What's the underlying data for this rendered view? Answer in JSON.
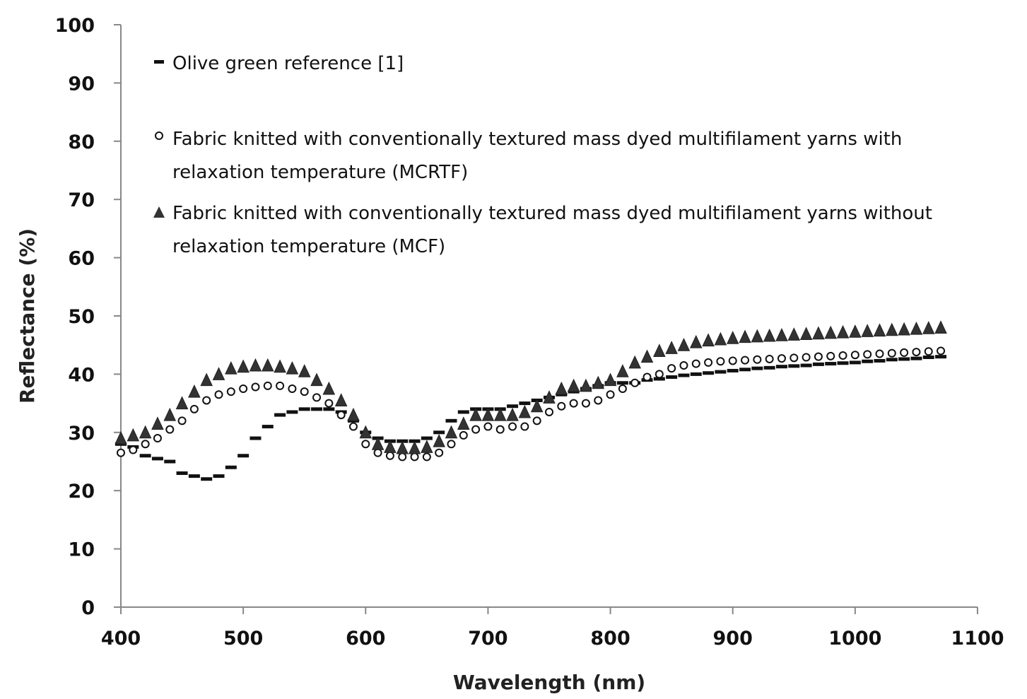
{
  "chart_data": {
    "type": "scatter",
    "title": "",
    "xlabel": "Wavelength (nm)",
    "ylabel": "Reflectance (%)",
    "xlim": [
      400,
      1100
    ],
    "ylim": [
      0,
      100
    ],
    "xticks": [
      "400",
      "500",
      "600",
      "700",
      "800",
      "900",
      "1000",
      "1100"
    ],
    "yticks": [
      "0",
      "10",
      "20",
      "30",
      "40",
      "50",
      "60",
      "70",
      "80",
      "90",
      "100"
    ],
    "grid": false,
    "legend_placement": "top-left",
    "x": [
      400,
      410,
      420,
      430,
      440,
      450,
      460,
      470,
      480,
      490,
      500,
      510,
      520,
      530,
      540,
      550,
      560,
      570,
      580,
      590,
      600,
      610,
      620,
      630,
      640,
      650,
      660,
      670,
      680,
      690,
      700,
      710,
      720,
      730,
      740,
      750,
      760,
      770,
      780,
      790,
      800,
      810,
      820,
      830,
      840,
      850,
      860,
      870,
      880,
      890,
      900,
      910,
      920,
      930,
      940,
      950,
      960,
      970,
      980,
      990,
      1000,
      1010,
      1020,
      1030,
      1040,
      1050,
      1060,
      1070
    ],
    "series": [
      {
        "name": "Olive green reference [1]",
        "marker": "dash",
        "legend_lines": [
          "Olive green reference [1]"
        ],
        "values": [
          28,
          27.5,
          26,
          25.5,
          25,
          23,
          22.5,
          22,
          22.5,
          24,
          26,
          29,
          31,
          33,
          33.5,
          34,
          34,
          34,
          33.5,
          32,
          30,
          29,
          28.5,
          28.5,
          28.5,
          29,
          30,
          32,
          33.5,
          34,
          34,
          34,
          34.5,
          35,
          35.5,
          36,
          36.5,
          37,
          37.5,
          38,
          38.5,
          38.5,
          38.5,
          39,
          39.2,
          39.5,
          39.8,
          40,
          40.2,
          40.4,
          40.6,
          40.8,
          41,
          41.1,
          41.3,
          41.4,
          41.5,
          41.7,
          41.8,
          41.9,
          42,
          42.2,
          42.3,
          42.5,
          42.6,
          42.7,
          42.9,
          43
        ]
      },
      {
        "name": "Fabric knitted with conventionally textured mass dyed multifilament yarns with relaxation temperature (MCRTF)",
        "marker": "circle",
        "legend_lines": [
          "Fabric knitted with conventionally textured mass dyed multifilament yarns with",
          "relaxation temperature  (MCRTF)"
        ],
        "values": [
          26.5,
          27,
          28,
          29,
          30.5,
          32,
          34,
          35.5,
          36.5,
          37,
          37.5,
          37.8,
          38,
          38,
          37.5,
          37,
          36,
          35,
          33,
          31,
          28,
          26.5,
          26,
          25.8,
          25.8,
          25.8,
          26.5,
          28,
          29.5,
          30.5,
          31,
          30.5,
          31,
          31,
          32,
          33.5,
          34.5,
          35,
          35,
          35.5,
          36.5,
          37.5,
          38.5,
          39.5,
          40,
          41,
          41.5,
          41.8,
          42,
          42.2,
          42.3,
          42.4,
          42.5,
          42.6,
          42.7,
          42.8,
          42.9,
          43,
          43.1,
          43.2,
          43.3,
          43.4,
          43.5,
          43.6,
          43.7,
          43.8,
          43.9,
          44
        ]
      },
      {
        "name": "Fabric knitted with conventionally textured mass dyed multifilament yarns without relaxation temperature (MCF)",
        "marker": "triangle",
        "legend_lines": [
          "Fabric knitted with conventionally textured mass dyed multifilament yarns without",
          "relaxation temperature (MCF)"
        ],
        "values": [
          29,
          29.5,
          30,
          31.5,
          33,
          35,
          37,
          39,
          40,
          41,
          41.3,
          41.5,
          41.5,
          41.3,
          41,
          40.5,
          39,
          37.5,
          35.5,
          33,
          30,
          28,
          27.5,
          27.3,
          27.3,
          27.5,
          28.5,
          30,
          31.5,
          33,
          33,
          33,
          33,
          33.5,
          34.5,
          36,
          37.5,
          38,
          38,
          38.5,
          39,
          40.5,
          42,
          43,
          44,
          44.5,
          45,
          45.5,
          45.8,
          46,
          46.2,
          46.4,
          46.5,
          46.6,
          46.7,
          46.8,
          46.9,
          47,
          47.1,
          47.2,
          47.3,
          47.4,
          47.5,
          47.6,
          47.7,
          47.8,
          47.9,
          48
        ]
      }
    ]
  }
}
